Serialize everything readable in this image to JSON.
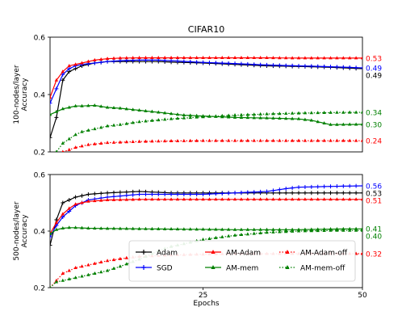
{
  "chart_data": [
    {
      "type": "line",
      "title": "CIFAR10",
      "ylabel": "100-nodes/layer\nAccuracy",
      "xlabel": "",
      "xlim": [
        1,
        50
      ],
      "ylim": [
        0.2,
        0.6
      ],
      "yticks": [
        "0.2",
        "0.4",
        "0.6"
      ],
      "xticks": [],
      "grid": false,
      "series": [
        {
          "name": "Adam",
          "color": "#000000",
          "style": "solid",
          "marker": "plus",
          "x": [
            1,
            2,
            3,
            4,
            5,
            6,
            8,
            10,
            12,
            15,
            18,
            20,
            25,
            30,
            35,
            40,
            45,
            50
          ],
          "y": [
            0.25,
            0.32,
            0.45,
            0.48,
            0.49,
            0.5,
            0.51,
            0.515,
            0.515,
            0.515,
            0.515,
            0.513,
            0.51,
            0.505,
            0.5,
            0.498,
            0.495,
            0.49
          ],
          "end_label": "0.49"
        },
        {
          "name": "SGD",
          "color": "#0000ff",
          "style": "solid",
          "marker": "plus",
          "x": [
            1,
            2,
            3,
            4,
            5,
            6,
            8,
            10,
            12,
            15,
            18,
            20,
            25,
            30,
            35,
            40,
            45,
            50
          ],
          "y": [
            0.37,
            0.42,
            0.47,
            0.49,
            0.5,
            0.505,
            0.51,
            0.515,
            0.518,
            0.52,
            0.52,
            0.518,
            0.512,
            0.508,
            0.503,
            0.5,
            0.497,
            0.493
          ],
          "end_label": "0.49"
        },
        {
          "name": "AM-Adam",
          "color": "#ff0000",
          "style": "solid",
          "marker": "triangle",
          "x": [
            1,
            2,
            3,
            4,
            5,
            6,
            8,
            10,
            12,
            15,
            20,
            25,
            30,
            35,
            40,
            45,
            50
          ],
          "y": [
            0.39,
            0.45,
            0.48,
            0.5,
            0.505,
            0.51,
            0.52,
            0.525,
            0.527,
            0.528,
            0.528,
            0.528,
            0.528,
            0.528,
            0.527,
            0.527,
            0.527
          ],
          "end_label": "0.53"
        },
        {
          "name": "AM-mem",
          "color": "#008000",
          "style": "solid",
          "marker": "triangle",
          "x": [
            1,
            2,
            3,
            4,
            5,
            6,
            8,
            10,
            12,
            15,
            18,
            20,
            22,
            25,
            30,
            35,
            40,
            42,
            45,
            50
          ],
          "y": [
            0.33,
            0.34,
            0.35,
            0.355,
            0.36,
            0.36,
            0.362,
            0.355,
            0.352,
            0.345,
            0.338,
            0.333,
            0.328,
            0.325,
            0.32,
            0.318,
            0.315,
            0.31,
            0.295,
            0.296
          ],
          "end_label": "0.30"
        },
        {
          "name": "AM-Adam-off",
          "color": "#ff0000",
          "style": "dotted",
          "marker": "triangle",
          "x": [
            1,
            3,
            5,
            7,
            10,
            15,
            20,
            25,
            30,
            35,
            40,
            45,
            50
          ],
          "y": [
            0.18,
            0.2,
            0.215,
            0.225,
            0.232,
            0.236,
            0.238,
            0.239,
            0.239,
            0.239,
            0.239,
            0.239,
            0.239
          ],
          "end_label": "0.24"
        },
        {
          "name": "AM-mem-off",
          "color": "#008000",
          "style": "dotted",
          "marker": "triangle",
          "x": [
            1,
            3,
            5,
            6,
            8,
            10,
            12,
            15,
            20,
            25,
            30,
            35,
            40,
            45,
            50
          ],
          "y": [
            0.17,
            0.23,
            0.26,
            0.27,
            0.28,
            0.29,
            0.295,
            0.305,
            0.315,
            0.322,
            0.328,
            0.332,
            0.335,
            0.337,
            0.338
          ],
          "end_label": "0.34"
        }
      ]
    },
    {
      "type": "line",
      "title": "",
      "ylabel": "500-nodes/layer\nAccuracy",
      "xlabel": "Epochs",
      "xlim": [
        1,
        50
      ],
      "ylim": [
        0.2,
        0.6
      ],
      "yticks": [
        "0.2",
        "0.4",
        "0.6"
      ],
      "xticks": [
        "25",
        "50"
      ],
      "grid": false,
      "legend_position": "lower-center",
      "series": [
        {
          "name": "Adam",
          "color": "#000000",
          "style": "solid",
          "marker": "plus",
          "x": [
            1,
            2,
            3,
            4,
            5,
            7,
            10,
            15,
            20,
            25,
            30,
            35,
            40,
            45,
            50
          ],
          "y": [
            0.35,
            0.44,
            0.5,
            0.51,
            0.52,
            0.53,
            0.535,
            0.54,
            0.535,
            0.535,
            0.535,
            0.535,
            0.535,
            0.535,
            0.535
          ],
          "end_label": "0.53"
        },
        {
          "name": "SGD",
          "color": "#0000ff",
          "style": "solid",
          "marker": "plus",
          "x": [
            1,
            2,
            3,
            4,
            5,
            7,
            10,
            15,
            20,
            25,
            30,
            35,
            38,
            40,
            45,
            50
          ],
          "y": [
            0.38,
            0.42,
            0.45,
            0.47,
            0.49,
            0.51,
            0.52,
            0.53,
            0.53,
            0.53,
            0.535,
            0.54,
            0.55,
            0.555,
            0.558,
            0.56
          ],
          "end_label": "0.56"
        },
        {
          "name": "AM-Adam",
          "color": "#ff0000",
          "style": "solid",
          "marker": "triangle",
          "x": [
            1,
            2,
            3,
            4,
            5,
            7,
            10,
            15,
            20,
            25,
            30,
            35,
            40,
            45,
            50
          ],
          "y": [
            0.39,
            0.43,
            0.46,
            0.48,
            0.495,
            0.505,
            0.51,
            0.512,
            0.512,
            0.512,
            0.512,
            0.512,
            0.512,
            0.512,
            0.512
          ],
          "end_label": "0.51"
        },
        {
          "name": "AM-mem",
          "color": "#008000",
          "style": "solid",
          "marker": "triangle",
          "x": [
            1,
            2,
            3,
            4,
            5,
            7,
            10,
            15,
            20,
            25,
            30,
            35,
            40,
            45,
            50
          ],
          "y": [
            0.39,
            0.405,
            0.41,
            0.412,
            0.412,
            0.41,
            0.409,
            0.408,
            0.407,
            0.406,
            0.405,
            0.405,
            0.405,
            0.407,
            0.408
          ],
          "end_label": "0.41"
        },
        {
          "name": "AM-Adam-off",
          "color": "#ff0000",
          "style": "dotted",
          "marker": "triangle",
          "x": [
            1,
            3,
            5,
            7,
            10,
            13,
            15,
            20,
            25,
            30,
            35,
            40,
            45,
            50
          ],
          "y": [
            0.2,
            0.25,
            0.27,
            0.28,
            0.295,
            0.305,
            0.31,
            0.315,
            0.318,
            0.32,
            0.32,
            0.32,
            0.32,
            0.32
          ],
          "end_label": "0.32"
        },
        {
          "name": "AM-mem-off",
          "color": "#008000",
          "style": "dotted",
          "marker": "triangle",
          "x": [
            1,
            2,
            4,
            6,
            8,
            10,
            12,
            15,
            18,
            20,
            25,
            30,
            35,
            40,
            45,
            50
          ],
          "y": [
            0.2,
            0.22,
            0.23,
            0.24,
            0.25,
            0.26,
            0.275,
            0.3,
            0.33,
            0.345,
            0.37,
            0.385,
            0.395,
            0.4,
            0.402,
            0.402
          ],
          "end_label": "0.40"
        }
      ]
    }
  ]
}
